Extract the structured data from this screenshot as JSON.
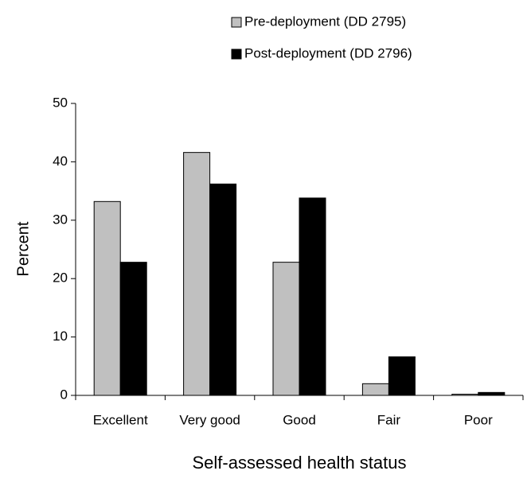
{
  "chart_data": {
    "type": "bar",
    "xlabel": "Self-assessed health status",
    "ylabel": "Percent",
    "categories": [
      "Excellent",
      "Very good",
      "Good",
      "Fair",
      "Poor"
    ],
    "series": [
      {
        "name": "Pre-deployment (DD 2795)",
        "color": "#c0c0c0",
        "values": [
          33.2,
          41.6,
          22.8,
          2.0,
          0.2
        ]
      },
      {
        "name": "Post-deployment (DD 2796)",
        "color": "#000000",
        "values": [
          22.8,
          36.2,
          33.8,
          6.6,
          0.5
        ]
      }
    ],
    "ylim": [
      0,
      50
    ],
    "yticks": [
      0,
      10,
      20,
      30,
      40,
      50
    ],
    "grid": false,
    "legend": "top"
  }
}
